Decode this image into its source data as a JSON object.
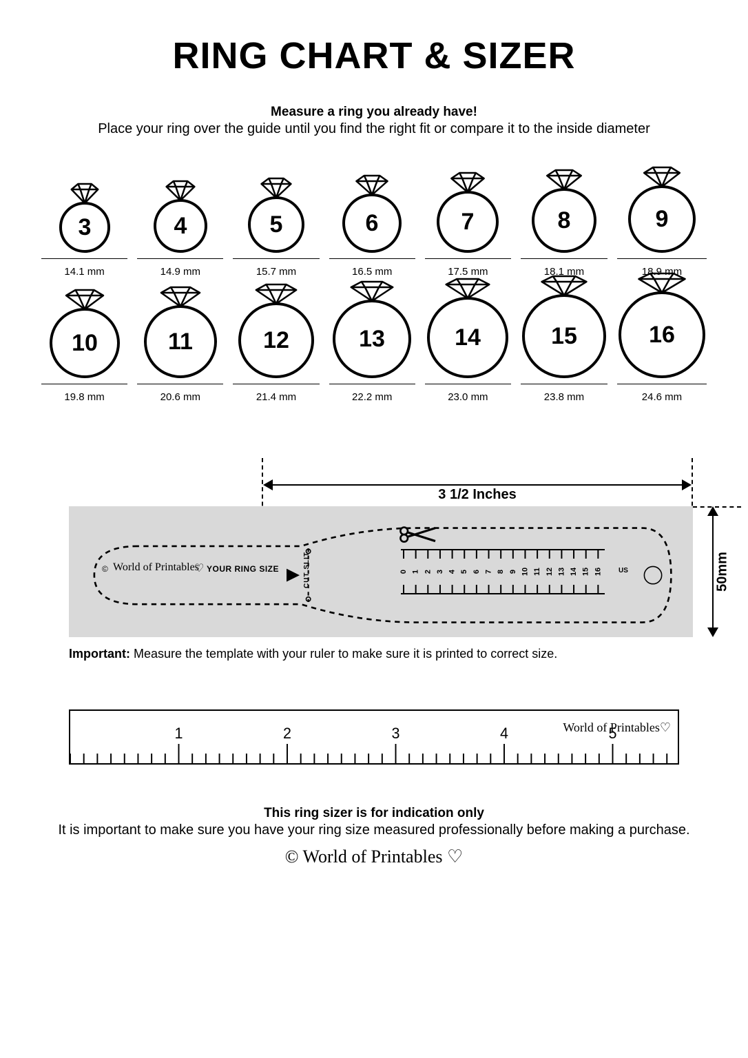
{
  "title": "RING CHART & SIZER",
  "subtitle_bold": "Measure a ring you already have!",
  "subtitle": "Place your ring over the guide until you find the right fit or compare it to the inside diameter",
  "rings": [
    {
      "size": "3",
      "mm": "14.1 mm",
      "d": 70
    },
    {
      "size": "4",
      "mm": "14.9 mm",
      "d": 74
    },
    {
      "size": "5",
      "mm": "15.7 mm",
      "d": 78
    },
    {
      "size": "6",
      "mm": "16.5 mm",
      "d": 82
    },
    {
      "size": "7",
      "mm": "17.5 mm",
      "d": 86
    },
    {
      "size": "8",
      "mm": "18.1 mm",
      "d": 90
    },
    {
      "size": "9",
      "mm": "18.9 mm",
      "d": 94
    },
    {
      "size": "10",
      "mm": "19.8 mm",
      "d": 98
    },
    {
      "size": "11",
      "mm": "20.6 mm",
      "d": 102
    },
    {
      "size": "12",
      "mm": "21.4 mm",
      "d": 106
    },
    {
      "size": "13",
      "mm": "22.2 mm",
      "d": 110
    },
    {
      "size": "14",
      "mm": "23.0 mm",
      "d": 114
    },
    {
      "size": "15",
      "mm": "23.8 mm",
      "d": 118
    },
    {
      "size": "16",
      "mm": "24.6 mm",
      "d": 122
    }
  ],
  "ring_style": {
    "stroke": "#000000",
    "stroke_width": 4,
    "number_fontsize": 34,
    "number_fontweight": 700,
    "diamond_height": 30
  },
  "sizer": {
    "width_label": "3 1/2 Inches",
    "height_label": "50mm",
    "strip_bg": "#d9d9d9",
    "your_ring_size": "YOUR RING SIZE",
    "cut_slit": "CUT SLIT",
    "brand": "World of Printables",
    "us_label": "US",
    "scale_numbers": [
      "0",
      "1",
      "2",
      "3",
      "4",
      "5",
      "6",
      "7",
      "8",
      "9",
      "10",
      "11",
      "12",
      "13",
      "14",
      "15",
      "16"
    ]
  },
  "important_label": "Important:",
  "important_text": " Measure the template with your ruler to make sure it is printed to correct size.",
  "ruler": {
    "major_marks": [
      "1",
      "2",
      "3",
      "4",
      "5"
    ],
    "brand": "World of Printables",
    "minor_per_major": 8,
    "major_height": 28,
    "minor_height": 14,
    "label_fontsize": 22
  },
  "footer_bold": "This ring sizer is for indication only",
  "footer_text": "It is important to make sure you have your ring size measured professionally before making a purchase.",
  "footer_brand": "© World of Printables ♡",
  "colors": {
    "text": "#000000",
    "bg": "#ffffff"
  }
}
